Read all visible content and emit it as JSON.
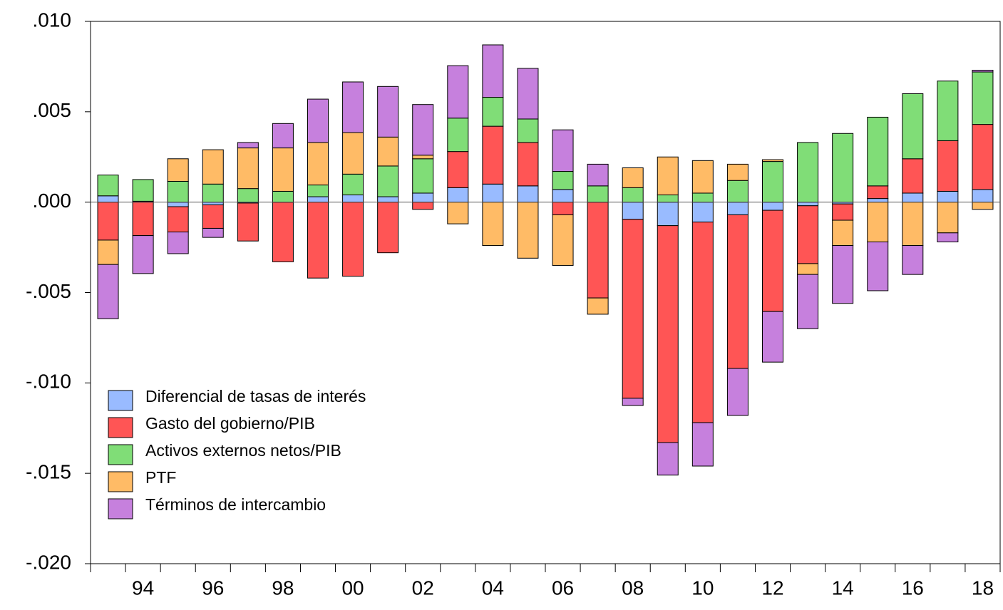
{
  "chart_data": {
    "type": "bar",
    "stacked": true,
    "legend": "lower left",
    "grid": false,
    "categories": [
      null,
      "94",
      null,
      "96",
      null,
      "98",
      null,
      "00",
      null,
      "02",
      null,
      "04",
      null,
      "06",
      null,
      "08",
      null,
      "10",
      null,
      "12",
      null,
      "14",
      null,
      "16",
      null,
      "18"
    ],
    "ylim": [
      -0.02,
      0.01
    ],
    "yticks": [
      {
        "value": -0.02,
        "label": "-.020"
      },
      {
        "value": -0.015,
        "label": "-.015"
      },
      {
        "value": -0.01,
        "label": "-.010"
      },
      {
        "value": -0.005,
        "label": "-.005"
      },
      {
        "value": 0,
        "label": ".000"
      },
      {
        "value": 0.005,
        "label": ".005"
      },
      {
        "value": 0.01,
        "label": ".010"
      }
    ],
    "series": [
      {
        "name": "Diferencial de tasas de interés",
        "color": "#99bbff",
        "values": [
          0.00035,
          5e-05,
          -0.00025,
          -0.00015,
          -5e-05,
          0,
          0.0003,
          0.0004,
          0.0003,
          0.0005,
          0.0008,
          0.001,
          0.0009,
          0.0007,
          0,
          -0.00095,
          -0.0013,
          -0.0011,
          -0.0007,
          -0.00045,
          -0.0002,
          -0.0001,
          0.0002,
          0.0005,
          0.0006,
          0.0007
        ]
      },
      {
        "name": "Gasto del gobierno/PIB",
        "color": "#ff5555",
        "values": [
          -0.0021,
          -0.00185,
          -0.0014,
          -0.0013,
          -0.0021,
          -0.0033,
          -0.0042,
          -0.0041,
          -0.0028,
          -0.0004,
          0.002,
          0.0032,
          0.0024,
          -0.0007,
          -0.0053,
          -0.0099,
          -0.012,
          -0.0111,
          -0.0085,
          -0.0056,
          -0.0032,
          -0.0009,
          0.0007,
          0.0019,
          0.0028,
          0.0036
        ]
      },
      {
        "name": "Activos externos netos/PIB",
        "color": "#80dd77",
        "values": [
          0.00115,
          0.0012,
          0.00115,
          0.001,
          0.00075,
          0.0006,
          0.00065,
          0.00115,
          0.0017,
          0.0019,
          0.00185,
          0.0016,
          0.0013,
          0.001,
          0.0009,
          0.0008,
          0.0004,
          0.0005,
          0.0012,
          0.00225,
          0.0033,
          0.0038,
          0.0038,
          0.0036,
          0.0033,
          0.0029
        ]
      },
      {
        "name": "PTF",
        "color": "#ffbb66",
        "values": [
          -0.00135,
          0,
          0.00125,
          0.0019,
          0.00225,
          0.0024,
          0.00235,
          0.0023,
          0.0016,
          0.0002,
          -0.0012,
          -0.0024,
          -0.0031,
          -0.0028,
          -0.0009,
          0.0011,
          0.0021,
          0.0018,
          0.0009,
          0.0001,
          -0.0006,
          -0.0014,
          -0.0022,
          -0.0024,
          -0.0017,
          -0.0004
        ]
      },
      {
        "name": "Términos de intercambio",
        "color": "#c680dd",
        "values": [
          -0.003,
          -0.0021,
          -0.0012,
          -0.0005,
          0.0003,
          0.00135,
          0.0024,
          0.0028,
          0.0028,
          0.0028,
          0.0029,
          0.0029,
          0.0028,
          0.0023,
          0.0012,
          -0.0004,
          -0.0018,
          -0.0024,
          -0.0026,
          -0.0028,
          -0.003,
          -0.0032,
          -0.0027,
          -0.0016,
          -0.0005,
          0.0001
        ]
      }
    ]
  }
}
